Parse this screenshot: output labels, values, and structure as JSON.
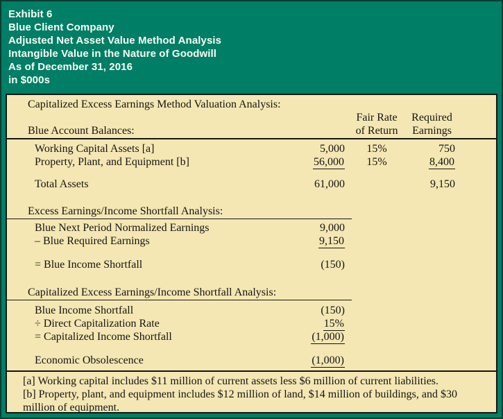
{
  "header": {
    "lines": [
      "Exhibit 6",
      "Blue Client Company",
      "Adjusted Net Asset Value Method Analysis",
      "Intangible Value in the Nature of Goodwill",
      "As of December 31, 2016",
      "in $000s"
    ]
  },
  "analysis": {
    "title": "Capitalized Excess Earnings Method Valuation Analysis:",
    "balances": {
      "heading": "Blue Account Balances:",
      "columns": {
        "fair_rate_line1": "Fair Rate",
        "fair_rate_line2": "of Return",
        "required_line1": "Required",
        "required_line2": "Earnings"
      },
      "rows": [
        {
          "label": "Working Capital Assets [a]",
          "amount": "5,000",
          "fair_rate": "15%",
          "required_earnings": "750"
        },
        {
          "label": "Property, Plant, and Equipment [b]",
          "amount": "56,000",
          "fair_rate": "15%",
          "required_earnings": "8,400"
        }
      ],
      "total": {
        "label": "Total Assets",
        "amount": "61,000",
        "required_earnings": "9,150"
      }
    },
    "shortfall": {
      "heading": "Excess Earnings/Income Shortfall Analysis:",
      "rows": [
        {
          "label": "Blue Next Period Normalized Earnings",
          "amount": "9,000"
        },
        {
          "label": "– Blue Required Earnings",
          "amount": "9,150"
        }
      ],
      "result": {
        "label": "= Blue Income Shortfall",
        "amount": "(150)"
      }
    },
    "capitalized": {
      "heading": "Capitalized Excess Earnings/Income Shortfall Analysis:",
      "rows": [
        {
          "label": "Blue Income Shortfall",
          "amount": "(150)"
        },
        {
          "label": "÷ Direct Capitalization Rate",
          "amount": "15%"
        },
        {
          "label": "= Capitalized Income Shortfall",
          "amount": "(1,000)"
        }
      ],
      "result": {
        "label": "Economic Obsolescence",
        "amount": "(1,000)"
      }
    }
  },
  "footnotes": [
    "[a] Working capital includes $11 million of current assets less $6 million of current liabilities.",
    "[b] Property, plant, and equipment includes $12 million of land, $14 million of buildings, and $30 million of equipment."
  ],
  "colors": {
    "header_green": "#007E66",
    "outer_border": "#0A3B32",
    "body_tan": "#F4E7B3",
    "text_ink": "#141414",
    "header_text": "#FDFDF6"
  }
}
